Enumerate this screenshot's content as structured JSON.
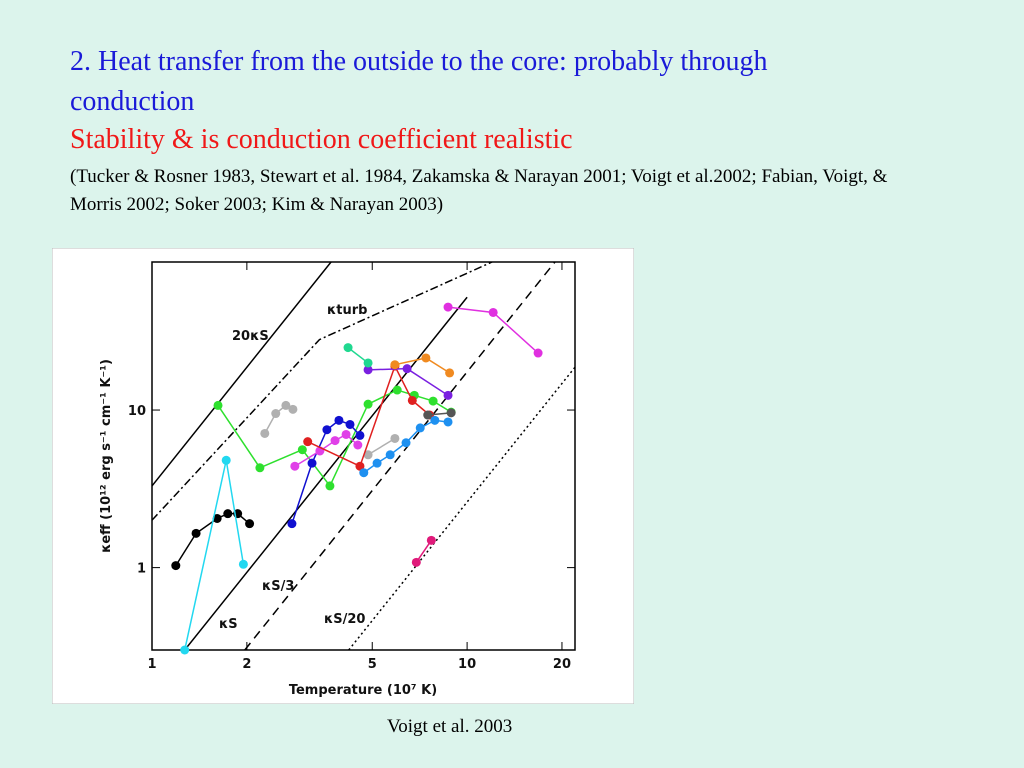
{
  "slide": {
    "heading": "2.  Heat transfer from the outside to the core: probably through conduction",
    "subheading": "Stability & is conduction coefficient realistic",
    "citation": "(Tucker & Rosner 1983, Stewart et al. 1984, Zakamska & Narayan 2001; Voigt et al.2002; Fabian, Voigt, & Morris 2002; Soker 2003; Kim & Narayan 2003)",
    "caption": "Voigt et al. 2003"
  },
  "chart_data": {
    "type": "scatter",
    "xlabel": "Temperature (10⁷ K)",
    "ylabel": "κeff (10¹² erg s⁻¹ cm⁻¹ K⁻¹)",
    "log_x": true,
    "log_y": true,
    "xlim": [
      1,
      22
    ],
    "ylim": [
      0.3,
      87
    ],
    "xticks": [
      1,
      2,
      5,
      10,
      20
    ],
    "yticks": [
      1,
      10
    ],
    "reference_lines": [
      {
        "label": "20κS",
        "style": "solid",
        "x": [
          1,
          3.7
        ],
        "values": [
          3.3,
          87
        ]
      },
      {
        "label": "κturb",
        "style": "dashdot",
        "x": [
          1,
          3.4,
          12
        ],
        "values": [
          2,
          28,
          87
        ]
      },
      {
        "label": "κS",
        "style": "solid",
        "x": [
          1.27,
          10
        ],
        "values": [
          0.3,
          52
        ]
      },
      {
        "label": "κS/3",
        "style": "dashed",
        "x": [
          1.97,
          19
        ],
        "values": [
          0.3,
          87
        ]
      },
      {
        "label": "κS/20",
        "style": "dotted",
        "x": [
          4.21,
          22
        ],
        "values": [
          0.3,
          18.7
        ]
      }
    ],
    "series": [
      {
        "color": "#000000",
        "x": [
          1.19,
          1.38,
          1.61,
          1.74,
          1.87,
          2.04
        ],
        "values": [
          1.03,
          1.65,
          2.05,
          2.2,
          2.2,
          1.9
        ]
      },
      {
        "color": "#22d8f0",
        "x": [
          1.27,
          1.72,
          1.95
        ],
        "values": [
          0.3,
          4.8,
          1.05
        ]
      },
      {
        "color": "#2ee02e",
        "x": [
          1.62,
          2.2,
          3.0,
          3.67,
          4.85,
          6.0,
          6.8,
          7.8,
          8.9
        ],
        "values": [
          10.7,
          4.3,
          5.6,
          3.3,
          10.9,
          13.4,
          12.4,
          11.4,
          9.7
        ]
      },
      {
        "color": "#b0b0b0",
        "x": [
          2.28,
          2.47,
          2.66,
          2.8
        ],
        "values": [
          7.1,
          9.5,
          10.7,
          10.1
        ]
      },
      {
        "color": "#b0b0b0",
        "x": [
          4.85,
          5.9
        ],
        "values": [
          5.2,
          6.6
        ]
      },
      {
        "color": "#1010d0",
        "x": [
          2.78,
          3.22,
          3.59,
          3.92,
          4.25,
          4.57
        ],
        "values": [
          1.9,
          4.6,
          7.5,
          8.6,
          8.1,
          6.9
        ]
      },
      {
        "color": "#e040e8",
        "x": [
          2.84,
          3.41,
          3.81,
          4.13,
          4.5
        ],
        "values": [
          4.4,
          5.5,
          6.4,
          7.0,
          6.0
        ]
      },
      {
        "color": "#e02020",
        "x": [
          3.12,
          4.57,
          5.9,
          6.7,
          7.6
        ],
        "values": [
          6.3,
          4.4,
          19,
          11.5,
          9.3
        ]
      },
      {
        "color": "#1e90f0",
        "x": [
          4.7,
          5.18,
          5.7,
          6.4,
          7.1,
          7.9,
          8.7
        ],
        "values": [
          4.0,
          4.6,
          5.2,
          6.2,
          7.7,
          8.6,
          8.4
        ]
      },
      {
        "color": "#7a20e0",
        "x": [
          4.85,
          6.45,
          8.7
        ],
        "values": [
          18,
          18.3,
          12.4
        ]
      },
      {
        "color": "#f08a20",
        "x": [
          5.9,
          7.4,
          8.8
        ],
        "values": [
          19.4,
          21.4,
          17.2
        ]
      },
      {
        "color": "#20d890",
        "x": [
          4.19,
          4.85
        ],
        "values": [
          24.9,
          19.9
        ]
      },
      {
        "color": "#555555",
        "x": [
          7.5,
          8.9
        ],
        "values": [
          9.3,
          9.6
        ]
      },
      {
        "color": "#e030e0",
        "x": [
          8.7,
          12.1,
          16.8
        ],
        "values": [
          45,
          41.6,
          23
        ]
      },
      {
        "color": "#e01a7a",
        "x": [
          6.9,
          7.7
        ],
        "values": [
          1.08,
          1.49
        ]
      }
    ]
  }
}
